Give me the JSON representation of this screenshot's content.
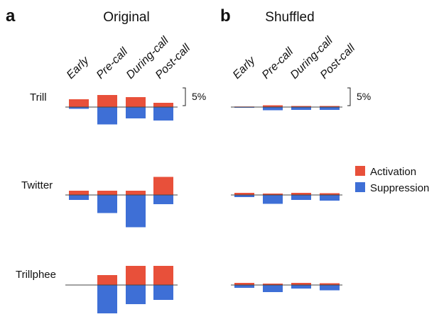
{
  "panels": {
    "a": {
      "letter": "a",
      "title": "Original"
    },
    "b": {
      "letter": "b",
      "title": "Shuffled"
    }
  },
  "scale_label": "5%",
  "legend": [
    {
      "label": "Activation",
      "color": "#e8503a"
    },
    {
      "label": "Suppression",
      "color": "#3e6fd6"
    }
  ],
  "chart_data": [
    {
      "type": "bar",
      "title": "Original",
      "categories": [
        "Early",
        "Pre-call",
        "During-call",
        "Post-call"
      ],
      "rows": [
        {
          "label": "Trill",
          "series": [
            {
              "name": "Activation",
              "values": [
                2.2,
                3.4,
                2.8,
                1.2
              ]
            },
            {
              "name": "Suppression",
              "values": [
                -0.5,
                -4.9,
                -3.2,
                -3.8
              ]
            }
          ]
        },
        {
          "label": "Twitter",
          "series": [
            {
              "name": "Activation",
              "values": [
                1.2,
                1.2,
                1.2,
                5.1
              ]
            },
            {
              "name": "Suppression",
              "values": [
                -1.4,
                -5.1,
                -9.1,
                -2.6
              ]
            }
          ]
        },
        {
          "label": "Trillphee",
          "series": [
            {
              "name": "Activation",
              "values": [
                0,
                2.8,
                5.4,
                5.4
              ]
            },
            {
              "name": "Suppression",
              "values": [
                0,
                -8.0,
                -5.4,
                -4.2
              ]
            }
          ]
        }
      ],
      "scale_bar": 5
    },
    {
      "type": "bar",
      "title": "Shuffled",
      "categories": [
        "Early",
        "Pre-call",
        "During-call",
        "Post-call"
      ],
      "rows": [
        {
          "label": "Trill",
          "series": [
            {
              "name": "Activation",
              "values": [
                0.15,
                0.5,
                0.3,
                0.3
              ]
            },
            {
              "name": "Suppression",
              "values": [
                -0.2,
                -0.9,
                -0.8,
                -0.8
              ]
            }
          ]
        },
        {
          "label": "Twitter",
          "series": [
            {
              "name": "Activation",
              "values": [
                0.6,
                0.4,
                0.6,
                0.5
              ]
            },
            {
              "name": "Suppression",
              "values": [
                -0.6,
                -2.5,
                -1.4,
                -1.6
              ]
            }
          ]
        },
        {
          "label": "Trillphee",
          "series": [
            {
              "name": "Activation",
              "values": [
                0.6,
                0.4,
                0.6,
                0.5
              ]
            },
            {
              "name": "Suppression",
              "values": [
                -0.8,
                -2.0,
                -1.0,
                -1.5
              ]
            }
          ]
        }
      ],
      "scale_bar": 5
    }
  ]
}
